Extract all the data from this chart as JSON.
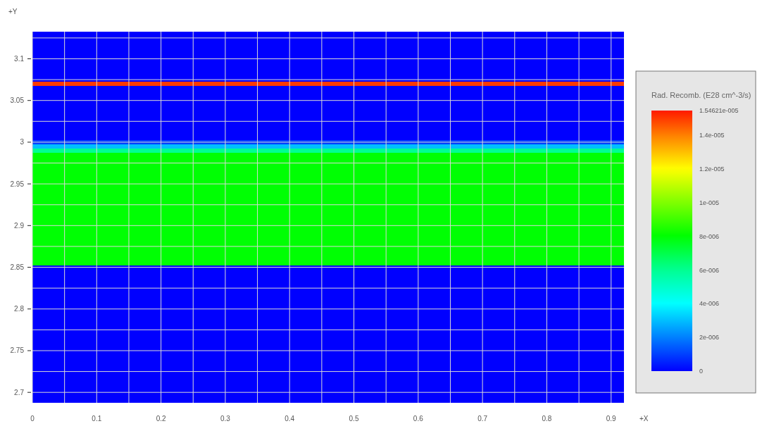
{
  "chart_data": {
    "type": "heatmap",
    "xlabel": "+X",
    "ylabel": "+Y",
    "clabel": "Rad. Recomb. (E28 cm^-3/s)",
    "cells": [
      [
        0
      ],
      [
        0
      ],
      [
        0
      ],
      [
        0
      ],
      [
        0
      ],
      [
        0
      ],
      [
        0
      ],
      [
        0
      ],
      [
        0
      ],
      [
        0
      ],
      [
        0
      ],
      [
        0
      ],
      [
        1.5e-05
      ],
      [
        0
      ],
      [
        0
      ],
      [
        0
      ],
      [
        0
      ],
      [
        0
      ],
      [
        0
      ],
      [
        0
      ],
      [
        0
      ],
      [
        0
      ],
      [
        0
      ],
      [
        0
      ],
      [
        0
      ],
      [
        0
      ],
      [
        1e-06
      ],
      [
        3e-06
      ],
      [
        6e-06
      ],
      [
        8e-06
      ],
      [
        8e-06
      ],
      [
        8e-06
      ],
      [
        8e-06
      ],
      [
        8e-06
      ],
      [
        8e-06
      ],
      [
        8e-06
      ],
      [
        8e-06
      ],
      [
        8e-06
      ],
      [
        8e-06
      ],
      [
        8e-06
      ],
      [
        8e-06
      ],
      [
        8e-06
      ],
      [
        8e-06
      ],
      [
        8e-06
      ],
      [
        8e-06
      ],
      [
        8e-06
      ],
      [
        8e-06
      ],
      [
        8e-06
      ],
      [
        8e-06
      ],
      [
        8e-06
      ],
      [
        8e-06
      ],
      [
        8e-06
      ],
      [
        8e-06
      ],
      [
        8e-06
      ],
      [
        8e-06
      ],
      [
        8e-06
      ],
      [
        0
      ],
      [
        0
      ],
      [
        0
      ],
      [
        0
      ],
      [
        0
      ],
      [
        0
      ],
      [
        0
      ],
      [
        0
      ],
      [
        0
      ],
      [
        0
      ],
      [
        0
      ],
      [
        0
      ],
      [
        0
      ],
      [
        0
      ],
      [
        0
      ],
      [
        0
      ],
      [
        0
      ],
      [
        0
      ],
      [
        0
      ],
      [
        0
      ],
      [
        0
      ],
      [
        0
      ],
      [
        0
      ],
      [
        0
      ],
      [
        0
      ],
      [
        0
      ],
      [
        0
      ],
      [
        0
      ],
      [
        0
      ],
      [
        0
      ],
      [
        0
      ],
      [
        0
      ],
      [
        0
      ]
    ],
    "xlim": [
      0,
      0.92
    ],
    "xticks": [
      0,
      {
        "value": 0.05,
        "label": null
      },
      0.1,
      {
        "value": 0.15,
        "label": null
      },
      0.2,
      {
        "value": 0.25,
        "label": null
      },
      0.3,
      {
        "value": 0.35,
        "label": null
      },
      0.4,
      {
        "value": 0.45,
        "label": null
      },
      0.5,
      {
        "value": 0.55,
        "label": null
      },
      0.6,
      {
        "value": 0.65,
        "label": null
      },
      0.7,
      {
        "value": 0.75,
        "label": null
      },
      0.8,
      {
        "value": 0.85,
        "label": null
      },
      0.9
    ],
    "ylim": [
      2.6875,
      3.1325
    ],
    "yticks": [
      2.7,
      {
        "value": 2.725,
        "label": null
      },
      2.75,
      {
        "value": 2.775,
        "label": null
      },
      2.8,
      {
        "value": 2.825,
        "label": null
      },
      2.85,
      {
        "value": 2.875,
        "label": null
      },
      2.9,
      {
        "value": 2.925,
        "label": null
      },
      2.95,
      {
        "value": 2.975,
        "label": null
      },
      3,
      {
        "value": 3.025,
        "label": null
      },
      3.05,
      {
        "value": 3.075,
        "label": null
      },
      3.1,
      {
        "value": 3.125,
        "label": null
      }
    ],
    "clim": [
      0,
      1.54621e-05
    ],
    "cticks": [
      0,
      {
        "value": 2e-06,
        "label": "2e-006"
      },
      {
        "value": 4e-06,
        "label": "4e-006"
      },
      {
        "value": 6e-06,
        "label": "6e-006"
      },
      {
        "value": 8e-06,
        "label": "8e-006"
      },
      {
        "value": 1e-05,
        "label": "1e-005"
      },
      {
        "value": 1.2e-05,
        "label": "1.2e-005"
      },
      {
        "value": 1.4e-05,
        "label": "1.4e-005"
      },
      {
        "value": 1.54621e-05,
        "label": "1.54621e-005"
      }
    ],
    "grid": true
  }
}
